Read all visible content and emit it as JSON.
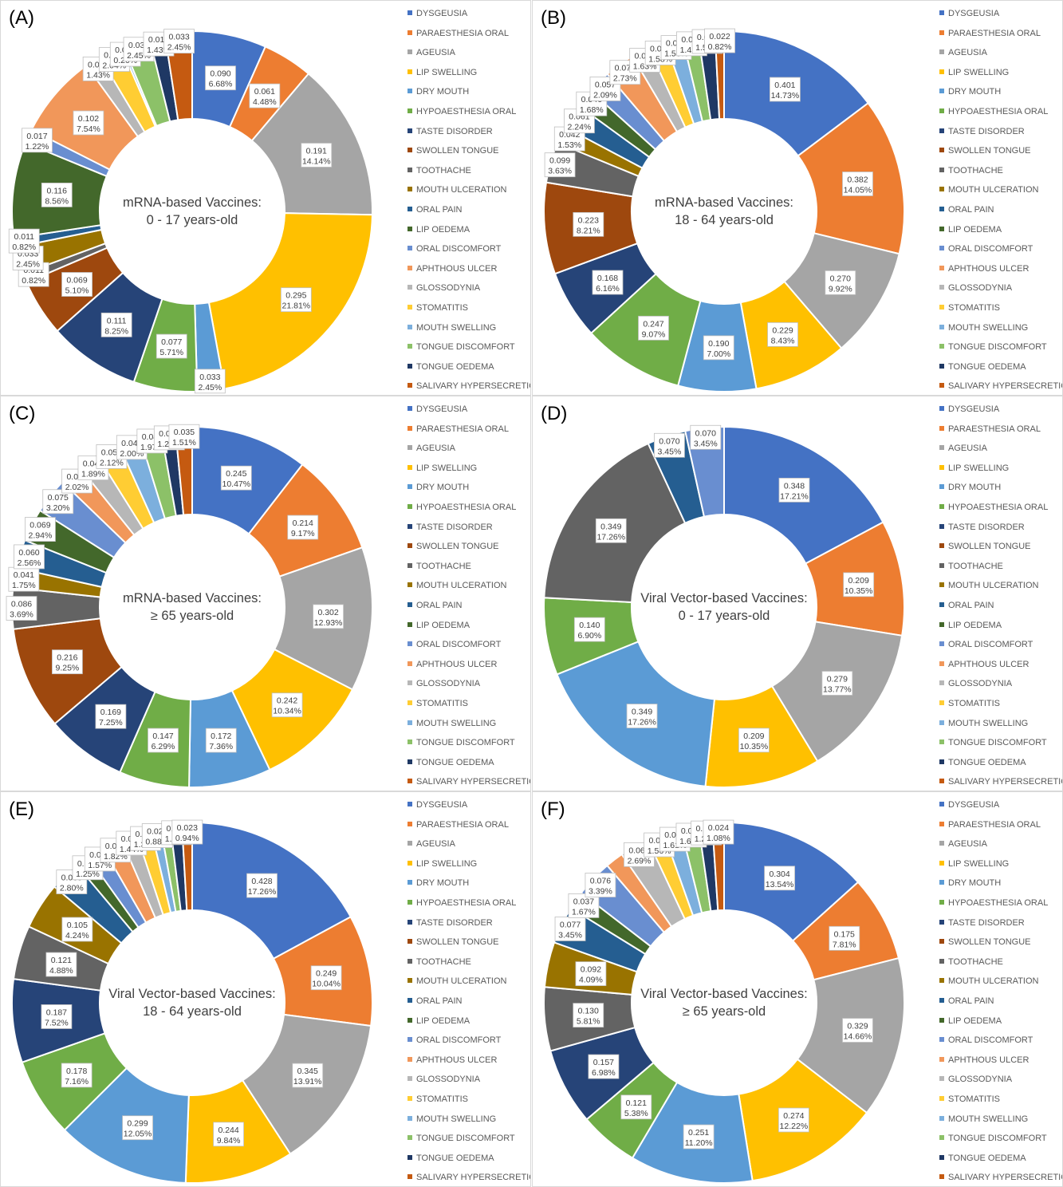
{
  "categories": [
    "DYSGEUSIA",
    "PARAESTHESIA ORAL",
    "AGEUSIA",
    "LIP SWELLING",
    "DRY MOUTH",
    "HYPOAESTHESIA ORAL",
    "TASTE DISORDER",
    "SWOLLEN TONGUE",
    "TOOTHACHE",
    "MOUTH ULCERATION",
    "ORAL PAIN",
    "LIP OEDEMA",
    "ORAL DISCOMFORT",
    "APHTHOUS ULCER",
    "GLOSSODYNIA",
    "STOMATITIS",
    "MOUTH SWELLING",
    "TONGUE DISCOMFORT",
    "TONGUE OEDEMA",
    "SALIVARY HYPERSECRETION"
  ],
  "colors": [
    "#4472C4",
    "#ED7D31",
    "#A5A5A5",
    "#FFC000",
    "#5B9BD5",
    "#70AD47",
    "#264478",
    "#9E480E",
    "#636363",
    "#997300",
    "#255E91",
    "#43682B",
    "#698ED0",
    "#F1975A",
    "#B7B7B7",
    "#FFCD33",
    "#7CAFDD",
    "#8CC168",
    "#1F3864",
    "#C55A11"
  ],
  "chart_data": [
    {
      "type": "pie",
      "panel": "(A)",
      "center_title": "mRNA-based Vaccines:",
      "center_subtitle": "0 - 17 years-old",
      "values": [
        0.09,
        0.061,
        0.191,
        0.295,
        0.033,
        0.077,
        0.111,
        0.069,
        0.011,
        0.033,
        0.011,
        0.116,
        0.017,
        0.102,
        0.019,
        0.028,
        0.003,
        0.033,
        0.019,
        0.033
      ],
      "percents": [
        "6.68%",
        "4.48%",
        "14.14%",
        "21.81%",
        "2.45%",
        "5.71%",
        "8.25%",
        "5.10%",
        "0.82%",
        "2.45%",
        "0.82%",
        "8.56%",
        "1.22%",
        "7.54%",
        "1.43%",
        "2.04%",
        "0.20%",
        "2.45%",
        "1.43%",
        "2.45%"
      ],
      "labels": [
        "0.090",
        "0.061",
        "0.191",
        "0.295",
        "0.033",
        "0.077",
        "0.111",
        "0.069",
        "0.011",
        "0.033",
        "0.011",
        "0.116",
        "0.017",
        "0.102",
        "0.019",
        "0.028",
        "0.003",
        "0.033",
        "0.019",
        "0.033"
      ]
    },
    {
      "type": "pie",
      "panel": "(B)",
      "center_title": "mRNA-based Vaccines:",
      "center_subtitle": "18 - 64 years-old",
      "values": [
        0.401,
        0.382,
        0.27,
        0.229,
        0.19,
        0.247,
        0.168,
        0.223,
        0.099,
        0.042,
        0.061,
        0.046,
        0.057,
        0.074,
        0.044,
        0.043,
        0.042,
        0.039,
        0.041,
        0.022
      ],
      "percents": [
        "14.73%",
        "14.05%",
        "9.92%",
        "8.43%",
        "7.00%",
        "9.07%",
        "6.16%",
        "8.21%",
        "3.63%",
        "1.53%",
        "2.24%",
        "1.68%",
        "2.09%",
        "2.73%",
        "1.63%",
        "1.58%",
        "1.56%",
        "1.42%",
        "1.51%",
        "0.82%"
      ],
      "labels": [
        "0.401",
        "0.382",
        "0.270",
        "0.229",
        "0.190",
        "0.247",
        "0.168",
        "0.223",
        "0.099",
        "0.042",
        "0.061",
        "0.046",
        "0.057",
        "0.074",
        "0.044",
        "0.043",
        "0.042",
        "0.039",
        "0.041",
        "0.022"
      ]
    },
    {
      "type": "pie",
      "panel": "(C)",
      "center_title": "mRNA-based Vaccines:",
      "center_subtitle": "≥ 65 years-old",
      "values": [
        0.245,
        0.214,
        0.302,
        0.242,
        0.172,
        0.147,
        0.169,
        0.216,
        0.086,
        0.041,
        0.06,
        0.069,
        0.075,
        0.047,
        0.044,
        0.05,
        0.047,
        0.046,
        0.03,
        0.035
      ],
      "percents": [
        "10.47%",
        "9.17%",
        "12.93%",
        "10.34%",
        "7.36%",
        "6.29%",
        "7.25%",
        "9.25%",
        "3.69%",
        "1.75%",
        "2.56%",
        "2.94%",
        "3.20%",
        "2.02%",
        "1.89%",
        "2.12%",
        "2.00%",
        "1.97%",
        "1.29%",
        "1.51%"
      ],
      "labels": [
        "0.245",
        "0.214",
        "0.302",
        "0.242",
        "0.172",
        "0.147",
        "0.169",
        "0.216",
        "0.086",
        "0.041",
        "0.060",
        "0.069",
        "0.075",
        "0.047",
        "0.044",
        "0.050",
        "0.047",
        "0.046",
        "0.030",
        "0.035"
      ]
    },
    {
      "type": "pie",
      "panel": "(D)",
      "center_title": "Viral Vector-based Vaccines:",
      "center_subtitle": "0 - 17 years-old",
      "values": [
        0.348,
        0.209,
        0.279,
        0.209,
        0.349,
        0.14,
        0,
        0,
        0.349,
        0,
        0.07,
        0,
        0.07,
        0,
        0,
        0,
        0,
        0,
        0,
        0
      ],
      "percents": [
        "17.21%",
        "10.35%",
        "13.77%",
        "10.35%",
        "17.26%",
        "6.90%",
        "",
        "",
        "17.26%",
        "",
        "3.45%",
        "",
        "3.45%",
        "",
        "",
        "",
        "",
        "",
        "",
        ""
      ],
      "labels": [
        "0.348",
        "0.209",
        "0.279",
        "0.209",
        "0.349",
        "0.140",
        "",
        "",
        "0.349",
        "",
        "0.070",
        "",
        "0.070",
        "",
        "",
        "",
        "",
        "",
        "",
        ""
      ]
    },
    {
      "type": "pie",
      "panel": "(E)",
      "center_title": "Viral Vector-based Vaccines:",
      "center_subtitle": "18 - 64 years-old",
      "values": [
        0.428,
        0.249,
        0.345,
        0.244,
        0.299,
        0.178,
        0.187,
        0,
        0.121,
        0.105,
        0.069,
        0.031,
        0.039,
        0.045,
        0.036,
        0.034,
        0.022,
        0.022,
        0.026,
        0.023
      ],
      "percents": [
        "17.26%",
        "10.04%",
        "13.91%",
        "9.84%",
        "12.05%",
        "7.16%",
        "7.52%",
        "",
        "4.88%",
        "4.24%",
        "2.80%",
        "1.25%",
        "1.57%",
        "1.82%",
        "1.44%",
        "1.39%",
        "0.88%",
        "",
        "1.04%",
        "0.94%"
      ],
      "labels": [
        "0.428",
        "0.249",
        "0.345",
        "0.244",
        "0.299",
        "0.178",
        "0.187",
        "",
        "0.121",
        "0.105",
        "0.069",
        "0.031",
        "0.039",
        "0.045",
        "0.036",
        "0.034",
        "0.022",
        "",
        "0.026",
        "0.023"
      ]
    },
    {
      "type": "pie",
      "panel": "(F)",
      "center_title": "Viral Vector-based Vaccines:",
      "center_subtitle": "≥ 65 years-old",
      "values": [
        0.304,
        0.175,
        0.329,
        0.274,
        0.251,
        0.121,
        0.157,
        0,
        0.13,
        0.092,
        0.077,
        0.037,
        0.076,
        0.037,
        0.06,
        0.035,
        0.036,
        0.036,
        0.028,
        0.024
      ],
      "percents": [
        "13.54%",
        "7.81%",
        "14.66%",
        "12.22%",
        "11.20%",
        "5.38%",
        "6.98%",
        "",
        "5.81%",
        "4.09%",
        "3.45%",
        "1.67%",
        "3.39%",
        "",
        "2.69%",
        "1.56%",
        "1.61%",
        "1.61%",
        "1.24%",
        "1.08%"
      ],
      "labels": [
        "0.304",
        "0.175",
        "0.329",
        "0.274",
        "0.251",
        "0.121",
        "0.157",
        "",
        "0.130",
        "0.092",
        "0.077",
        "0.037",
        "0.076",
        "",
        "0.060",
        "0.035",
        "0.036",
        "0.036",
        "0.028",
        "0.024"
      ]
    }
  ]
}
